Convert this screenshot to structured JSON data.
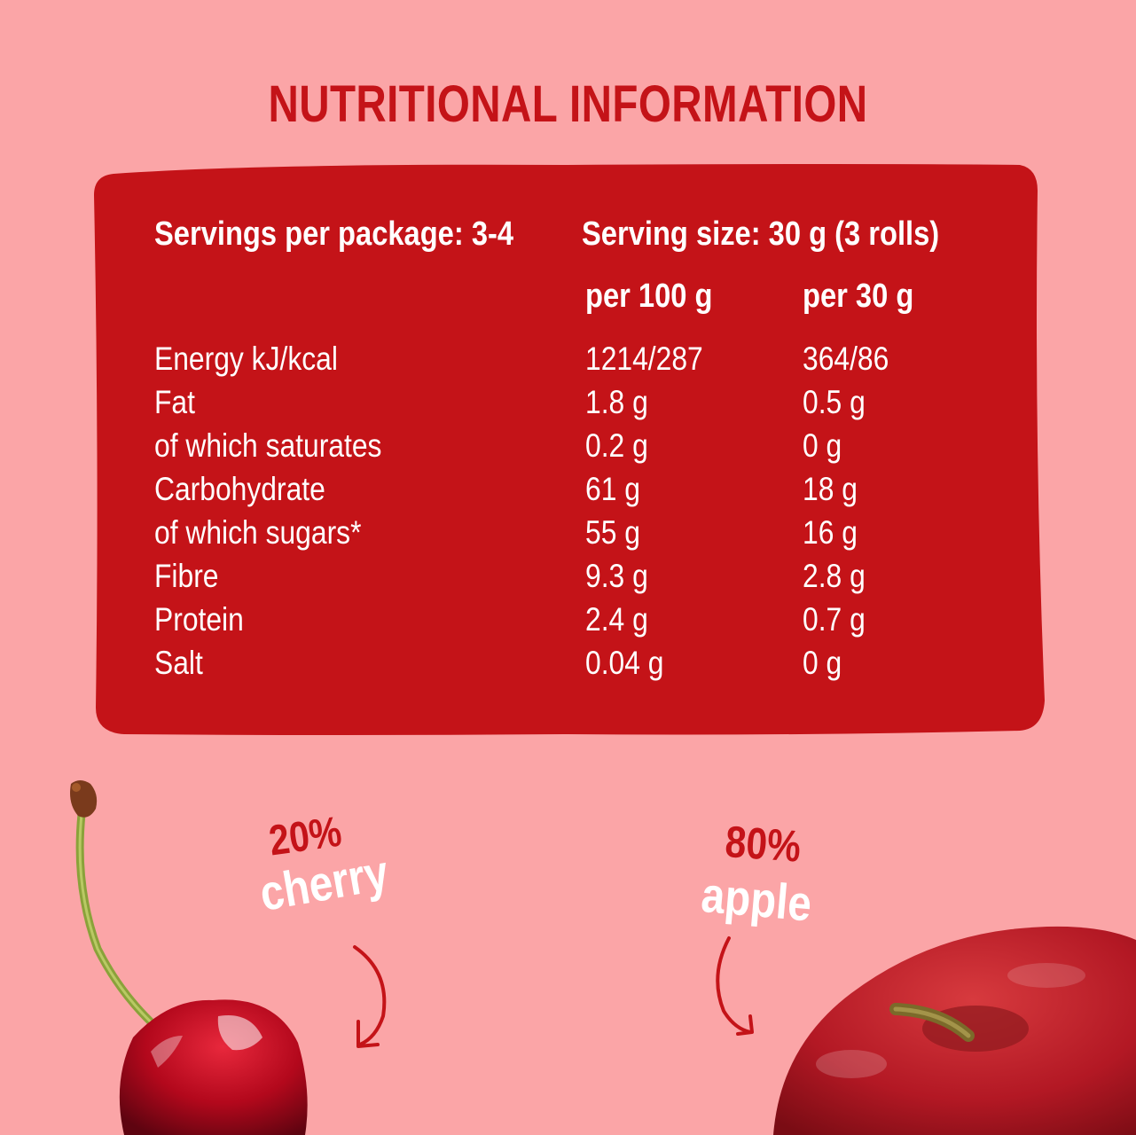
{
  "title": "NUTRITIONAL INFORMATION",
  "servings_per_package": "Servings per package: 3-4",
  "serving_size": "Serving size: 30 g (3 rolls)",
  "columns": {
    "per100": "per 100 g",
    "per30": "per 30 g"
  },
  "rows": [
    {
      "name": "Energy kJ/kcal",
      "per100": "1214/287",
      "per30": "364/86"
    },
    {
      "name": "Fat",
      "per100": "1.8 g",
      "per30": "0.5 g"
    },
    {
      "name": "of which saturates",
      "per100": "0.2 g",
      "per30": "0 g"
    },
    {
      "name": "Carbohydrate",
      "per100": "61 g",
      "per30": "18 g"
    },
    {
      "name": "of which sugars*",
      "per100": "55 g",
      "per30": "16 g"
    },
    {
      "name": "Fibre",
      "per100": "9.3 g",
      "per30": "2.8 g"
    },
    {
      "name": "Protein",
      "per100": "2.4 g",
      "per30": "0.7 g"
    },
    {
      "name": "Salt",
      "per100": "0.04 g",
      "per30": "0 g"
    }
  ],
  "cherry": {
    "percent": "20%",
    "name": "cherry"
  },
  "apple": {
    "percent": "80%",
    "name": "apple"
  },
  "colors": {
    "background": "#fba5a7",
    "panel": "#c41318",
    "accent_text": "#c41318",
    "panel_text": "#ffffff"
  }
}
